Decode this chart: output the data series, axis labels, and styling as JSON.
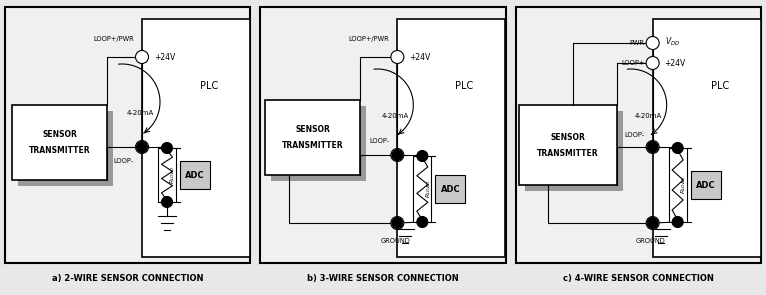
{
  "bg_color": "#e8e8e8",
  "panel_bg": "#f0f0f0",
  "white": "#ffffff",
  "gray_shadow": "#999999",
  "adc_bg": "#c8c8c8",
  "black": "#000000",
  "panels": [
    {
      "label": "a) 2-WIRE SENSOR CONNECTION"
    },
    {
      "label": "b) 3-WIRE SENSOR CONNECTION"
    },
    {
      "label": "c) 4-WIRE SENSOR CONNECTION"
    }
  ]
}
